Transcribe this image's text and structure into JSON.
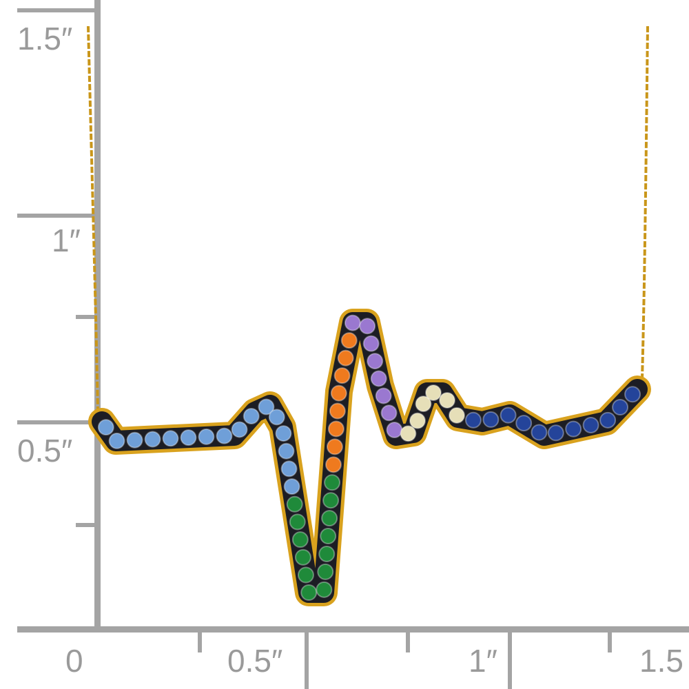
{
  "ruler": {
    "vertical_labels": [
      "1.5″",
      "1″",
      "0.5″"
    ],
    "horizontal_labels": [
      "0",
      "0.5″",
      "1″",
      "1.5"
    ]
  }
}
